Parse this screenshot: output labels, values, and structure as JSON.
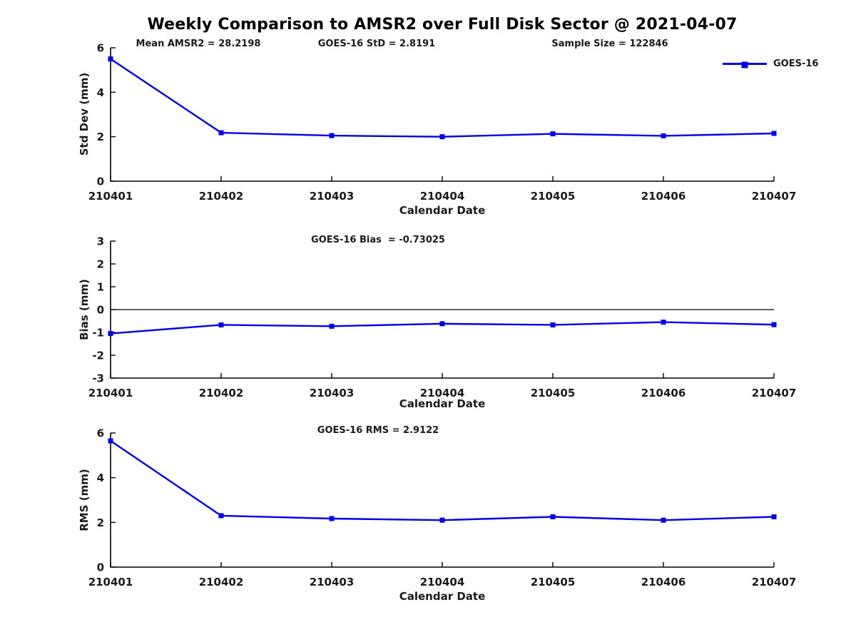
{
  "title": "Weekly Comparison to AMSR2 over Full Disk Sector @ 2021-04-07",
  "legend": {
    "label": "GOES-16"
  },
  "colors": {
    "line": "#0000ee",
    "axis": "#000000",
    "text": "#1a1a1a"
  },
  "chart_data": [
    {
      "type": "line",
      "panel": "std-dev",
      "ylabel": "Std Dev (mm)",
      "xlabel": "Calendar Date",
      "annotations": [
        "Mean AMSR2 = 28.2198",
        "GOES-16 StD = 2.8191",
        "Sample Size = 122846"
      ],
      "categories": [
        "210401",
        "210402",
        "210403",
        "210404",
        "210405",
        "210406",
        "210407"
      ],
      "series": [
        {
          "name": "GOES-16",
          "values": [
            5.5,
            2.18,
            2.05,
            2.0,
            2.13,
            2.04,
            2.15
          ]
        }
      ],
      "ylim": [
        0,
        6
      ],
      "yticks": [
        0,
        2,
        4,
        6
      ],
      "zero_line": false,
      "grid": false,
      "legend_position": "top-right"
    },
    {
      "type": "line",
      "panel": "bias",
      "ylabel": "Bias (mm)",
      "xlabel": "Calendar Date",
      "annotations": [
        "GOES-16 Bias  = -0.73025"
      ],
      "categories": [
        "210401",
        "210402",
        "210403",
        "210404",
        "210405",
        "210406",
        "210407"
      ],
      "series": [
        {
          "name": "GOES-16",
          "values": [
            -1.05,
            -0.67,
            -0.73,
            -0.62,
            -0.67,
            -0.55,
            -0.66
          ]
        }
      ],
      "ylim": [
        -3,
        3
      ],
      "yticks": [
        -3,
        -2,
        -1,
        0,
        1,
        2,
        3
      ],
      "zero_line": true,
      "grid": false
    },
    {
      "type": "line",
      "panel": "rms",
      "ylabel": "RMS (mm)",
      "xlabel": "Calendar Date",
      "annotations": [
        "GOES-16 RMS = 2.9122"
      ],
      "categories": [
        "210401",
        "210402",
        "210403",
        "210404",
        "210405",
        "210406",
        "210407"
      ],
      "series": [
        {
          "name": "GOES-16",
          "values": [
            5.65,
            2.3,
            2.17,
            2.1,
            2.25,
            2.1,
            2.25
          ]
        }
      ],
      "ylim": [
        0,
        6
      ],
      "yticks": [
        0,
        2,
        4,
        6
      ],
      "zero_line": false,
      "grid": false
    }
  ]
}
